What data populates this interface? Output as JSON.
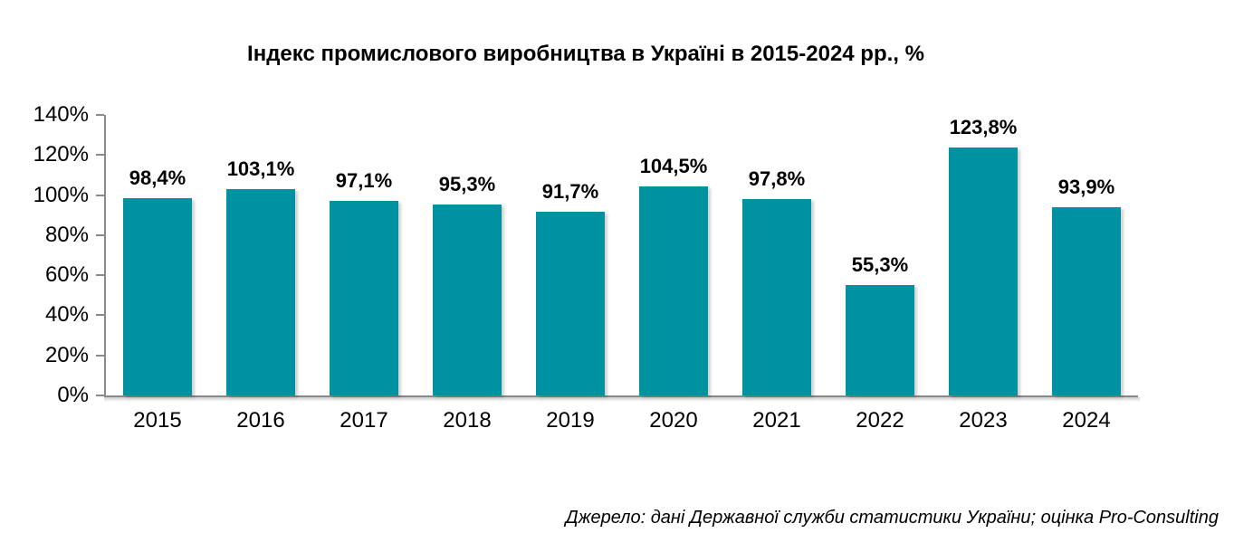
{
  "title": "Індекс промислового виробництва в Україні в 2015-2024 рр., %",
  "source": "Джерело: дані Державної служби статистики України; оцінка Pro-Consulting",
  "chart_data": {
    "type": "bar",
    "title": "Індекс промислового виробництва в Україні в 2015-2024 рр., %",
    "categories": [
      "2015",
      "2016",
      "2017",
      "2018",
      "2019",
      "2020",
      "2021",
      "2022",
      "2023",
      "2024"
    ],
    "values": [
      98.4,
      103.1,
      97.1,
      95.3,
      91.7,
      104.5,
      97.8,
      55.3,
      123.8,
      93.9
    ],
    "bar_labels": [
      "98,4%",
      "103,1%",
      "97,1%",
      "95,3%",
      "91,7%",
      "104,5%",
      "97,8%",
      "55,3%",
      "123,8%",
      "93,9%"
    ],
    "y_ticks": [
      "140%",
      "120%",
      "100%",
      "80%",
      "60%",
      "40%",
      "20%",
      "0%"
    ],
    "ylim": [
      0,
      140
    ],
    "xlabel": "",
    "ylabel": "",
    "grid": false,
    "legend": false,
    "bar_color": "#0092A0",
    "axis_color": "#898989",
    "label_color": "#000000"
  }
}
